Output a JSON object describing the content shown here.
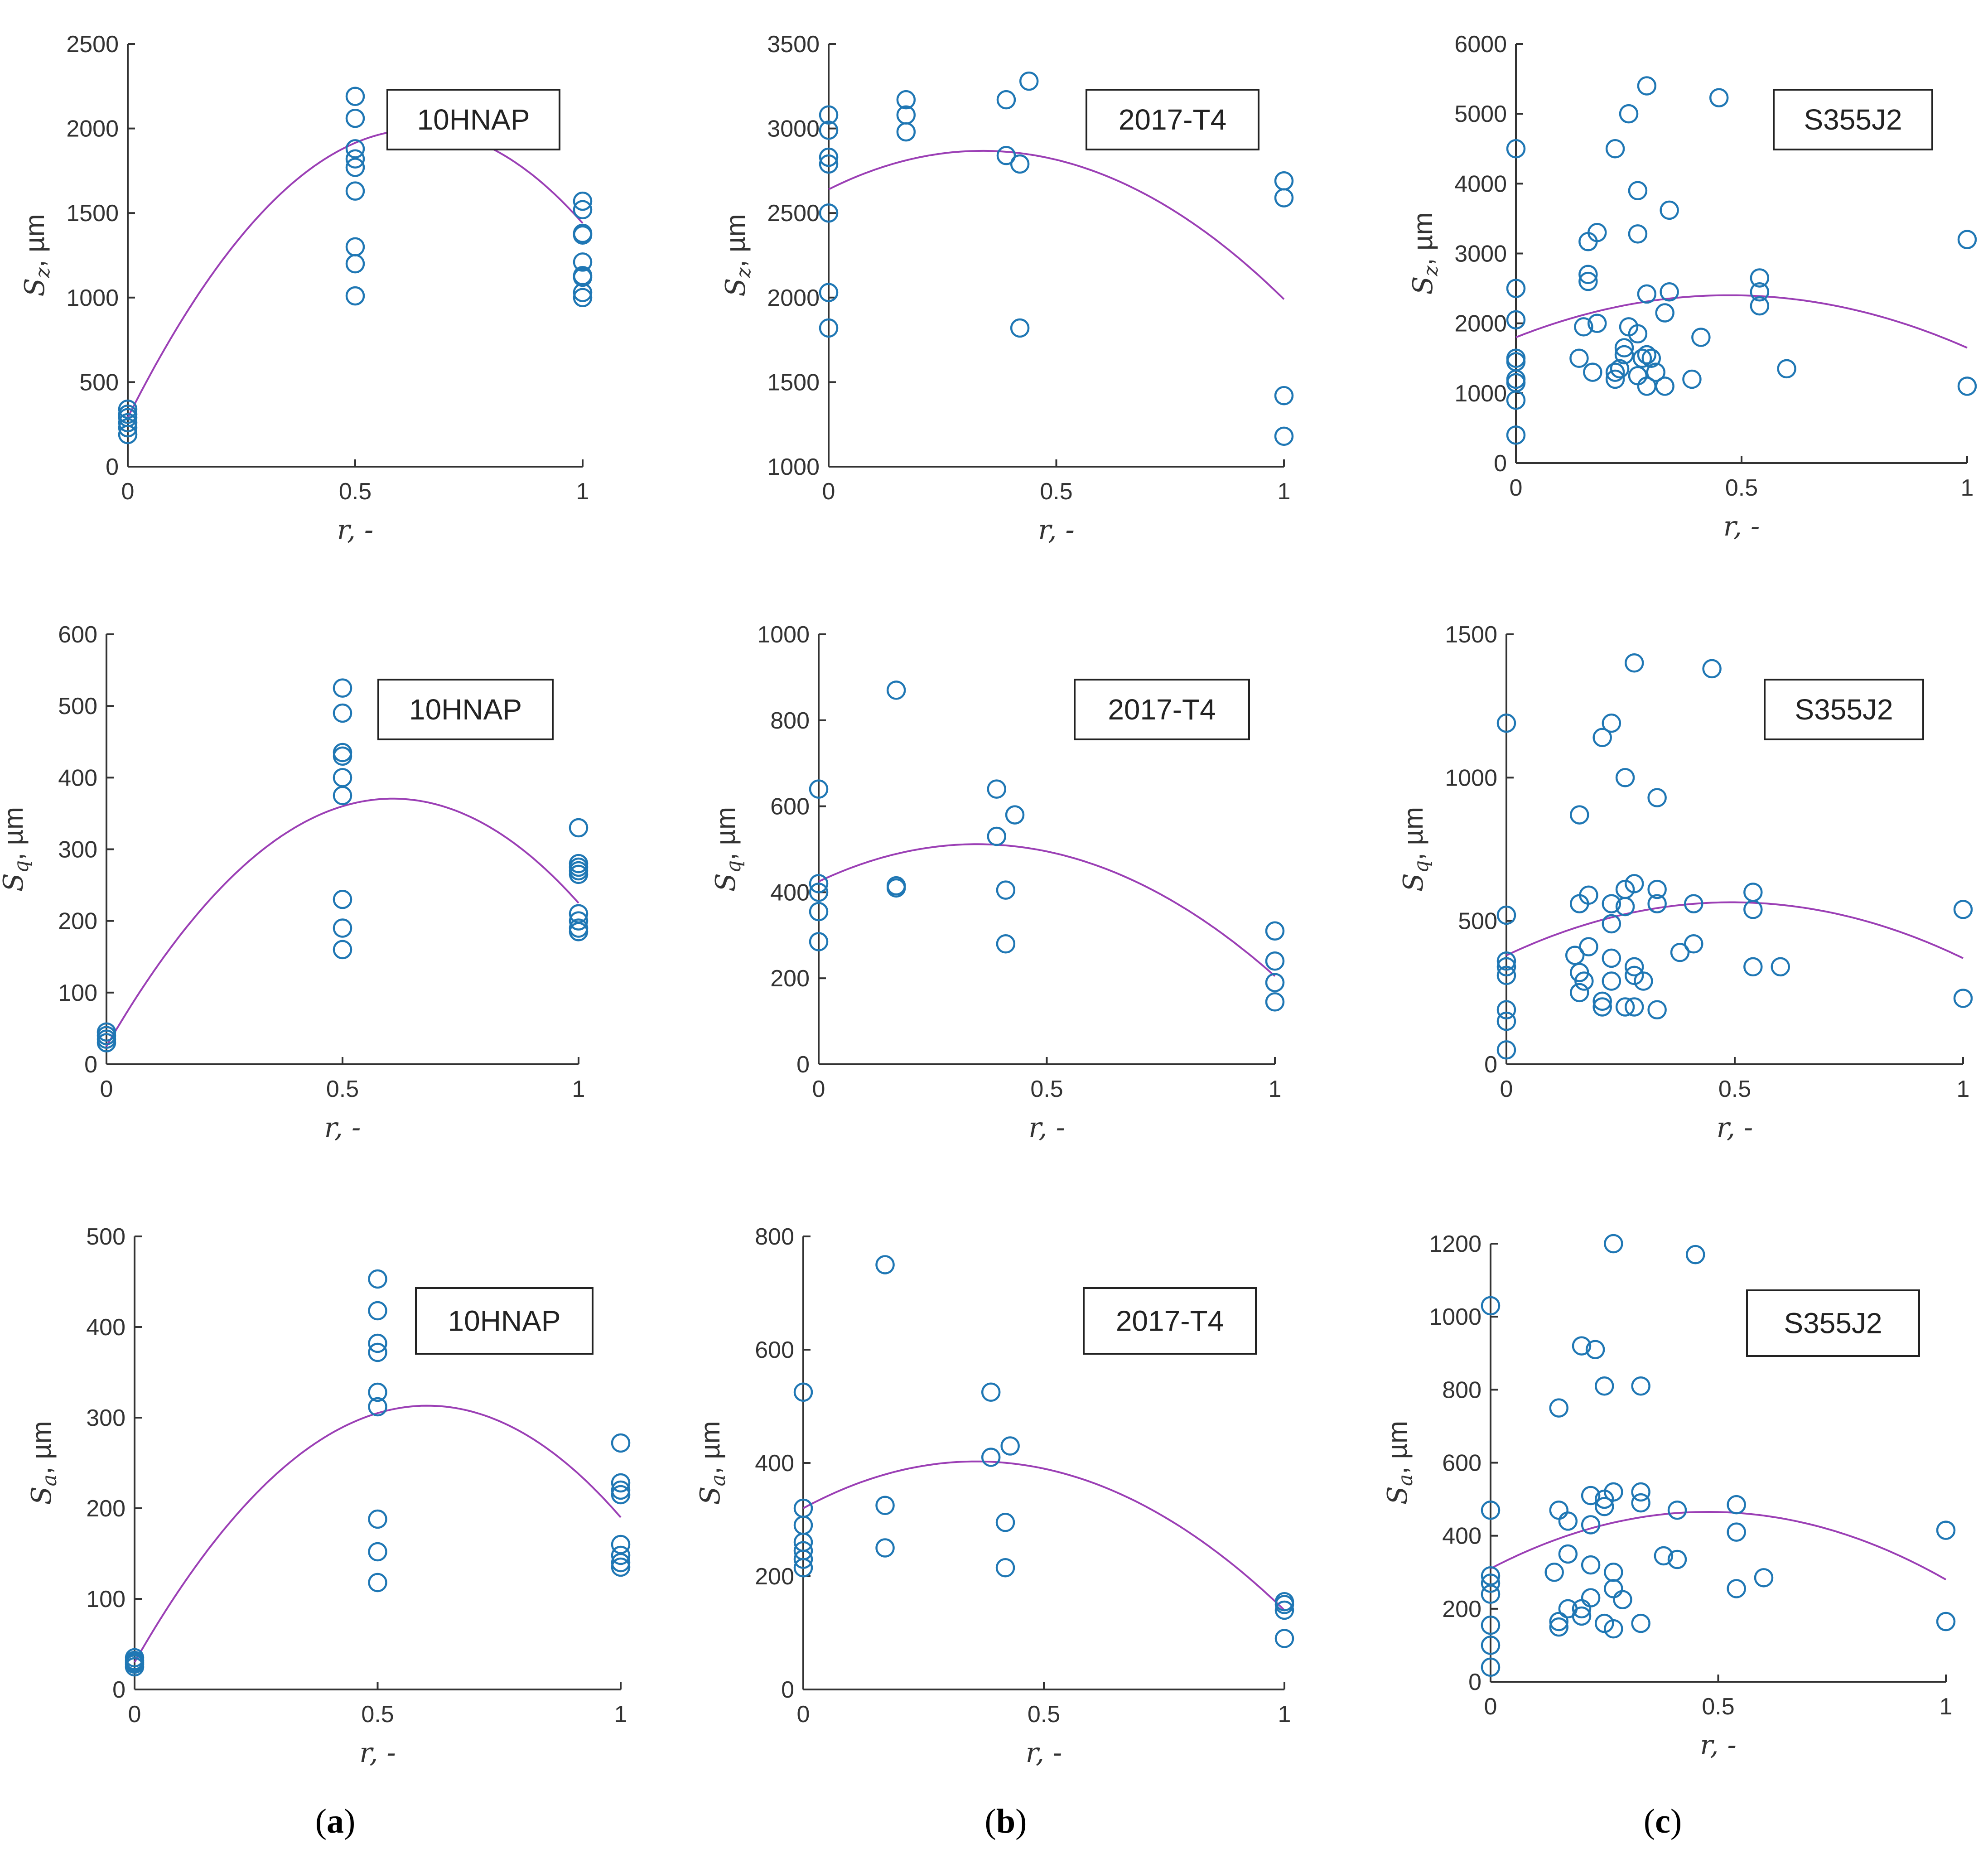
{
  "figure": {
    "colors": {
      "marker": "#1f77b4",
      "fit": "#9b3fb5",
      "axis": "#333333",
      "box": "#222222"
    },
    "captions": [
      {
        "open": "(",
        "letter": "a",
        "close": ")"
      },
      {
        "open": "(",
        "letter": "b",
        "close": ")"
      },
      {
        "open": "(",
        "letter": "c",
        "close": ")"
      }
    ]
  },
  "chart_data": [
    {
      "id": "p11",
      "type": "scatter",
      "legend": "10HNAP",
      "ylabel": "Sz, µm",
      "xlabel": "r, -",
      "xlim": [
        0,
        1
      ],
      "ylim": [
        0,
        2500
      ],
      "xticks": [
        0,
        0.5,
        1
      ],
      "xticklabels": [
        "0",
        "0.5",
        "1"
      ],
      "yticks": [
        0,
        500,
        1000,
        1500,
        2000,
        2500
      ],
      "yticklabels": [
        "0",
        "500",
        "1000",
        "1500",
        "2000",
        "2500"
      ],
      "points": [
        [
          0,
          190
        ],
        [
          0,
          230
        ],
        [
          0,
          260
        ],
        [
          0,
          290
        ],
        [
          0,
          310
        ],
        [
          0,
          340
        ],
        [
          0.5,
          1010
        ],
        [
          0.5,
          1200
        ],
        [
          0.5,
          1300
        ],
        [
          0.5,
          1630
        ],
        [
          0.5,
          1770
        ],
        [
          0.5,
          1820
        ],
        [
          0.5,
          1880
        ],
        [
          0.5,
          2060
        ],
        [
          0.5,
          2190
        ],
        [
          1,
          1000
        ],
        [
          1,
          1030
        ],
        [
          1,
          1120
        ],
        [
          1,
          1130
        ],
        [
          1,
          1210
        ],
        [
          1,
          1370
        ],
        [
          1,
          1380
        ],
        [
          1,
          1520
        ],
        [
          1,
          1570
        ]
      ],
      "fit": [
        -4200,
        5350,
        290
      ]
    },
    {
      "id": "p12",
      "type": "scatter",
      "legend": "2017-T4",
      "ylabel": "Sz, µm",
      "xlabel": "r, -",
      "xlim": [
        0,
        1
      ],
      "ylim": [
        1000,
        3500
      ],
      "xticks": [
        0,
        0.5,
        1
      ],
      "xticklabels": [
        "0",
        "0.5",
        "1"
      ],
      "yticks": [
        1000,
        1500,
        2000,
        2500,
        3000,
        3500
      ],
      "yticklabels": [
        "1000",
        "1500",
        "2000",
        "2500",
        "3000",
        "3500"
      ],
      "points": [
        [
          0,
          1820
        ],
        [
          0,
          2030
        ],
        [
          0,
          2500
        ],
        [
          0,
          2790
        ],
        [
          0,
          2830
        ],
        [
          0,
          2990
        ],
        [
          0,
          3080
        ],
        [
          0.17,
          2980
        ],
        [
          0.17,
          3080
        ],
        [
          0.17,
          3170
        ],
        [
          0.39,
          3170
        ],
        [
          0.39,
          2840
        ],
        [
          0.42,
          2790
        ],
        [
          0.42,
          1820
        ],
        [
          0.44,
          3280
        ],
        [
          1,
          2690
        ],
        [
          1,
          2590
        ],
        [
          1,
          1420
        ],
        [
          1,
          1180
        ]
      ],
      "fit": [
        -2000,
        1350,
        2640
      ]
    },
    {
      "id": "p13",
      "type": "scatter",
      "legend": "S355J2",
      "ylabel": "Sz, µm",
      "xlabel": "r, -",
      "xlim": [
        0,
        1
      ],
      "ylim": [
        0,
        6000
      ],
      "xticks": [
        0,
        0.5,
        1
      ],
      "xticklabels": [
        "0",
        "0.5",
        "1"
      ],
      "yticks": [
        0,
        1000,
        2000,
        3000,
        4000,
        5000,
        6000
      ],
      "yticklabels": [
        "0",
        "1000",
        "2000",
        "3000",
        "4000",
        "5000",
        "6000"
      ],
      "points": [
        [
          0,
          400
        ],
        [
          0,
          900
        ],
        [
          0,
          1150
        ],
        [
          0,
          1200
        ],
        [
          0,
          1450
        ],
        [
          0,
          1500
        ],
        [
          0,
          2050
        ],
        [
          0,
          2500
        ],
        [
          0,
          4500
        ],
        [
          0.14,
          1500
        ],
        [
          0.15,
          1950
        ],
        [
          0.16,
          2600
        ],
        [
          0.16,
          2700
        ],
        [
          0.16,
          3170
        ],
        [
          0.17,
          1300
        ],
        [
          0.18,
          2000
        ],
        [
          0.18,
          3300
        ],
        [
          0.22,
          1200
        ],
        [
          0.22,
          1300
        ],
        [
          0.22,
          4500
        ],
        [
          0.23,
          1350
        ],
        [
          0.24,
          1650
        ],
        [
          0.24,
          1550
        ],
        [
          0.25,
          1950
        ],
        [
          0.25,
          5000
        ],
        [
          0.27,
          1250
        ],
        [
          0.27,
          1850
        ],
        [
          0.27,
          3280
        ],
        [
          0.27,
          3900
        ],
        [
          0.28,
          1500
        ],
        [
          0.29,
          1550
        ],
        [
          0.29,
          1100
        ],
        [
          0.29,
          2420
        ],
        [
          0.29,
          5400
        ],
        [
          0.3,
          1500
        ],
        [
          0.31,
          1300
        ],
        [
          0.33,
          1100
        ],
        [
          0.33,
          2150
        ],
        [
          0.34,
          2450
        ],
        [
          0.34,
          3620
        ],
        [
          0.39,
          1200
        ],
        [
          0.41,
          1800
        ],
        [
          0.45,
          5230
        ],
        [
          0.54,
          2250
        ],
        [
          0.54,
          2450
        ],
        [
          0.54,
          2650
        ],
        [
          0.6,
          1350
        ],
        [
          1,
          1100
        ],
        [
          1,
          3200
        ]
      ],
      "fit": [
        -2700,
        2550,
        1800
      ]
    },
    {
      "id": "p21",
      "type": "scatter",
      "legend": "10HNAP",
      "ylabel": "Sq, µm",
      "xlabel": "r, -",
      "xlim": [
        0,
        1
      ],
      "ylim": [
        0,
        600
      ],
      "xticks": [
        0,
        0.5,
        1
      ],
      "xticklabels": [
        "0",
        "0.5",
        "1"
      ],
      "yticks": [
        0,
        100,
        200,
        300,
        400,
        500,
        600
      ],
      "yticklabels": [
        "0",
        "100",
        "200",
        "300",
        "400",
        "500",
        "600"
      ],
      "points": [
        [
          0,
          30
        ],
        [
          0,
          35
        ],
        [
          0,
          40
        ],
        [
          0,
          45
        ],
        [
          0.5,
          160
        ],
        [
          0.5,
          190
        ],
        [
          0.5,
          230
        ],
        [
          0.5,
          375
        ],
        [
          0.5,
          400
        ],
        [
          0.5,
          430
        ],
        [
          0.5,
          435
        ],
        [
          0.5,
          490
        ],
        [
          0.5,
          525
        ],
        [
          1,
          185
        ],
        [
          1,
          190
        ],
        [
          1,
          200
        ],
        [
          1,
          210
        ],
        [
          1,
          265
        ],
        [
          1,
          270
        ],
        [
          1,
          275
        ],
        [
          1,
          280
        ],
        [
          1,
          330
        ]
      ],
      "fit": [
        -940,
        1140,
        25
      ]
    },
    {
      "id": "p22",
      "type": "scatter",
      "legend": "2017-T4",
      "ylabel": "Sq, µm",
      "xlabel": "r, -",
      "xlim": [
        0,
        1
      ],
      "ylim": [
        0,
        1000
      ],
      "xticks": [
        0,
        0.5,
        1
      ],
      "xticklabels": [
        "0",
        "0.5",
        "1"
      ],
      "yticks": [
        0,
        200,
        400,
        600,
        800,
        1000
      ],
      "yticklabels": [
        "0",
        "200",
        "400",
        "600",
        "800",
        "1000"
      ],
      "points": [
        [
          0,
          285
        ],
        [
          0,
          355
        ],
        [
          0,
          400
        ],
        [
          0,
          420
        ],
        [
          0,
          640
        ],
        [
          0.17,
          410
        ],
        [
          0.17,
          415
        ],
        [
          0.17,
          870
        ],
        [
          0.39,
          530
        ],
        [
          0.39,
          640
        ],
        [
          0.41,
          280
        ],
        [
          0.41,
          405
        ],
        [
          0.43,
          580
        ],
        [
          1,
          310
        ],
        [
          1,
          240
        ],
        [
          1,
          190
        ],
        [
          1,
          145
        ]
      ],
      "fit": [
        -720,
        500,
        425
      ]
    },
    {
      "id": "p23",
      "type": "scatter",
      "legend": "S355J2",
      "ylabel": "Sq, µm",
      "xlabel": "r, -",
      "xlim": [
        0,
        1
      ],
      "ylim": [
        0,
        1500
      ],
      "xticks": [
        0,
        0.5,
        1
      ],
      "xticklabels": [
        "0",
        "0.5",
        "1"
      ],
      "yticks": [
        0,
        500,
        1000,
        1500
      ],
      "yticklabels": [
        "0",
        "500",
        "1000",
        "1500"
      ],
      "points": [
        [
          0,
          50
        ],
        [
          0,
          150
        ],
        [
          0,
          190
        ],
        [
          0,
          310
        ],
        [
          0,
          340
        ],
        [
          0,
          360
        ],
        [
          0,
          520
        ],
        [
          0,
          1190
        ],
        [
          0.15,
          380
        ],
        [
          0.16,
          250
        ],
        [
          0.16,
          320
        ],
        [
          0.16,
          560
        ],
        [
          0.16,
          870
        ],
        [
          0.17,
          290
        ],
        [
          0.18,
          410
        ],
        [
          0.18,
          590
        ],
        [
          0.21,
          200
        ],
        [
          0.21,
          220
        ],
        [
          0.21,
          1140
        ],
        [
          0.23,
          290
        ],
        [
          0.23,
          370
        ],
        [
          0.23,
          490
        ],
        [
          0.23,
          560
        ],
        [
          0.23,
          1190
        ],
        [
          0.26,
          200
        ],
        [
          0.26,
          550
        ],
        [
          0.26,
          610
        ],
        [
          0.26,
          1000
        ],
        [
          0.28,
          200
        ],
        [
          0.28,
          310
        ],
        [
          0.28,
          340
        ],
        [
          0.28,
          630
        ],
        [
          0.28,
          1400
        ],
        [
          0.3,
          290
        ],
        [
          0.33,
          190
        ],
        [
          0.33,
          560
        ],
        [
          0.33,
          610
        ],
        [
          0.33,
          930
        ],
        [
          0.38,
          390
        ],
        [
          0.41,
          420
        ],
        [
          0.41,
          560
        ],
        [
          0.45,
          1380
        ],
        [
          0.54,
          340
        ],
        [
          0.54,
          540
        ],
        [
          0.54,
          600
        ],
        [
          0.6,
          340
        ],
        [
          1,
          230
        ],
        [
          1,
          540
        ]
      ],
      "fit": [
        -760,
        750,
        380
      ]
    },
    {
      "id": "p31",
      "type": "scatter",
      "legend": "10HNAP",
      "ylabel": "Sa, µm",
      "xlabel": "r, -",
      "xlim": [
        0,
        1
      ],
      "ylim": [
        0,
        500
      ],
      "xticks": [
        0,
        0.5,
        1
      ],
      "xticklabels": [
        "0",
        "0.5",
        "1"
      ],
      "yticks": [
        0,
        100,
        200,
        300,
        400,
        500
      ],
      "yticklabels": [
        "0",
        "100",
        "200",
        "300",
        "400",
        "500"
      ],
      "points": [
        [
          0,
          25
        ],
        [
          0,
          28
        ],
        [
          0,
          30
        ],
        [
          0,
          32
        ],
        [
          0,
          35
        ],
        [
          0.5,
          118
        ],
        [
          0.5,
          152
        ],
        [
          0.5,
          188
        ],
        [
          0.5,
          312
        ],
        [
          0.5,
          328
        ],
        [
          0.5,
          372
        ],
        [
          0.5,
          382
        ],
        [
          0.5,
          418
        ],
        [
          0.5,
          453
        ],
        [
          1,
          135
        ],
        [
          1,
          140
        ],
        [
          1,
          148
        ],
        [
          1,
          160
        ],
        [
          1,
          215
        ],
        [
          1,
          220
        ],
        [
          1,
          228
        ],
        [
          1,
          272
        ]
      ],
      "fit": [
        -780,
        940,
        30
      ]
    },
    {
      "id": "p32",
      "type": "scatter",
      "legend": "2017-T4",
      "ylabel": "Sa, µm",
      "xlabel": "r, -",
      "xlim": [
        0,
        1
      ],
      "ylim": [
        0,
        800
      ],
      "xticks": [
        0,
        0.5,
        1
      ],
      "xticklabels": [
        "0",
        "0.5",
        "1"
      ],
      "yticks": [
        0,
        200,
        400,
        600,
        800
      ],
      "yticklabels": [
        "0",
        "200",
        "400",
        "600",
        "800"
      ],
      "points": [
        [
          0,
          215
        ],
        [
          0,
          230
        ],
        [
          0,
          245
        ],
        [
          0,
          260
        ],
        [
          0,
          290
        ],
        [
          0,
          320
        ],
        [
          0,
          525
        ],
        [
          0.17,
          250
        ],
        [
          0.17,
          325
        ],
        [
          0.17,
          750
        ],
        [
          0.39,
          410
        ],
        [
          0.39,
          525
        ],
        [
          0.42,
          215
        ],
        [
          0.42,
          295
        ],
        [
          0.43,
          430
        ],
        [
          1,
          90
        ],
        [
          1,
          140
        ],
        [
          1,
          150
        ],
        [
          1,
          155
        ]
      ],
      "fit": [
        -640,
        460,
        320
      ]
    },
    {
      "id": "p33",
      "type": "scatter",
      "legend": "S355J2",
      "ylabel": "Sa, µm",
      "xlabel": "r, -",
      "xlim": [
        0,
        1
      ],
      "ylim": [
        0,
        1200
      ],
      "xticks": [
        0,
        0.5,
        1
      ],
      "xticklabels": [
        "0",
        "0.5",
        "1"
      ],
      "yticks": [
        0,
        200,
        400,
        600,
        800,
        1000,
        1200
      ],
      "yticklabels": [
        "0",
        "200",
        "400",
        "600",
        "800",
        "1000",
        "1200"
      ],
      "points": [
        [
          0,
          40
        ],
        [
          0,
          100
        ],
        [
          0,
          155
        ],
        [
          0,
          240
        ],
        [
          0,
          270
        ],
        [
          0,
          290
        ],
        [
          0,
          470
        ],
        [
          0,
          1030
        ],
        [
          0.14,
          300
        ],
        [
          0.15,
          150
        ],
        [
          0.15,
          165
        ],
        [
          0.15,
          470
        ],
        [
          0.15,
          750
        ],
        [
          0.17,
          200
        ],
        [
          0.17,
          350
        ],
        [
          0.17,
          440
        ],
        [
          0.2,
          180
        ],
        [
          0.2,
          200
        ],
        [
          0.2,
          920
        ],
        [
          0.22,
          230
        ],
        [
          0.22,
          320
        ],
        [
          0.22,
          430
        ],
        [
          0.22,
          510
        ],
        [
          0.23,
          910
        ],
        [
          0.25,
          160
        ],
        [
          0.25,
          480
        ],
        [
          0.25,
          500
        ],
        [
          0.25,
          810
        ],
        [
          0.27,
          145
        ],
        [
          0.27,
          255
        ],
        [
          0.27,
          300
        ],
        [
          0.27,
          520
        ],
        [
          0.27,
          1200
        ],
        [
          0.29,
          225
        ],
        [
          0.33,
          160
        ],
        [
          0.33,
          490
        ],
        [
          0.33,
          520
        ],
        [
          0.33,
          810
        ],
        [
          0.38,
          345
        ],
        [
          0.41,
          335
        ],
        [
          0.41,
          470
        ],
        [
          0.45,
          1170
        ],
        [
          0.54,
          255
        ],
        [
          0.54,
          410
        ],
        [
          0.54,
          485
        ],
        [
          0.6,
          285
        ],
        [
          1,
          165
        ],
        [
          1,
          415
        ]
      ],
      "fit": [
        -680,
        650,
        310
      ]
    }
  ]
}
